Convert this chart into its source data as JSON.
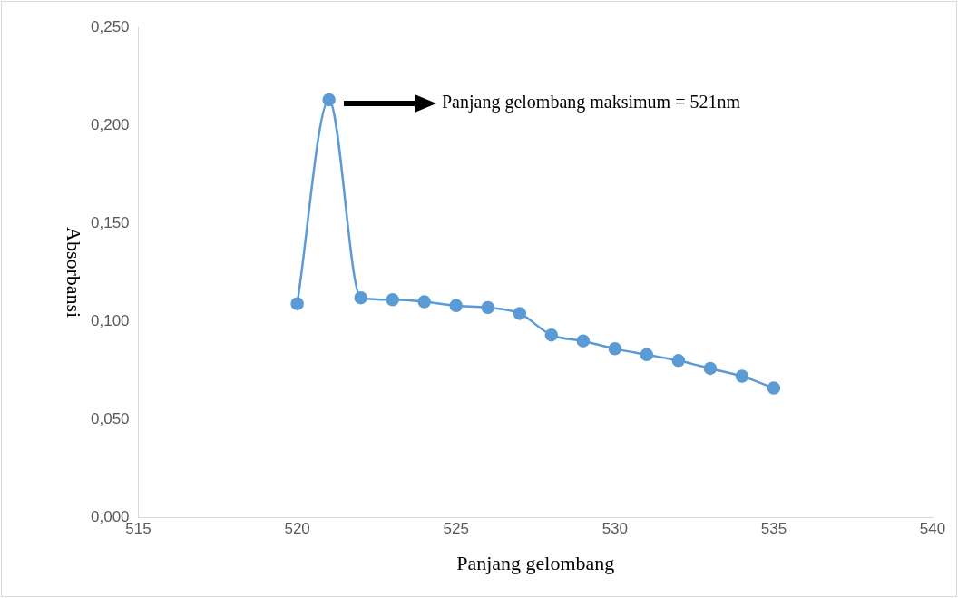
{
  "chart_data": {
    "type": "line",
    "xlabel": "Panjang gelombang",
    "ylabel": "Absorbansi",
    "x": [
      520,
      521,
      522,
      523,
      524,
      525,
      526,
      527,
      528,
      529,
      530,
      531,
      532,
      533,
      534,
      535
    ],
    "series": [
      {
        "color": "#5b9bd5",
        "values": [
          0.109,
          0.213,
          0.112,
          0.111,
          0.11,
          0.108,
          0.107,
          0.104,
          0.093,
          0.09,
          0.086,
          0.083,
          0.08,
          0.076,
          0.072,
          0.066
        ]
      }
    ],
    "xlim": [
      515,
      540
    ],
    "xticks": [
      515,
      520,
      525,
      530,
      535,
      540
    ],
    "ylim": [
      0,
      0.25
    ],
    "yticks": [
      {
        "value": 0,
        "label": "0,000"
      },
      {
        "value": 0.05,
        "label": "0,050"
      },
      {
        "value": 0.1,
        "label": "0,100"
      },
      {
        "value": 0.15,
        "label": "0,150"
      },
      {
        "value": 0.2,
        "label": "0,200"
      },
      {
        "value": 0.25,
        "label": "0,250"
      }
    ],
    "marker": "circle",
    "annotations": [
      "Panjang gelombang maksimum = 521nm"
    ]
  }
}
